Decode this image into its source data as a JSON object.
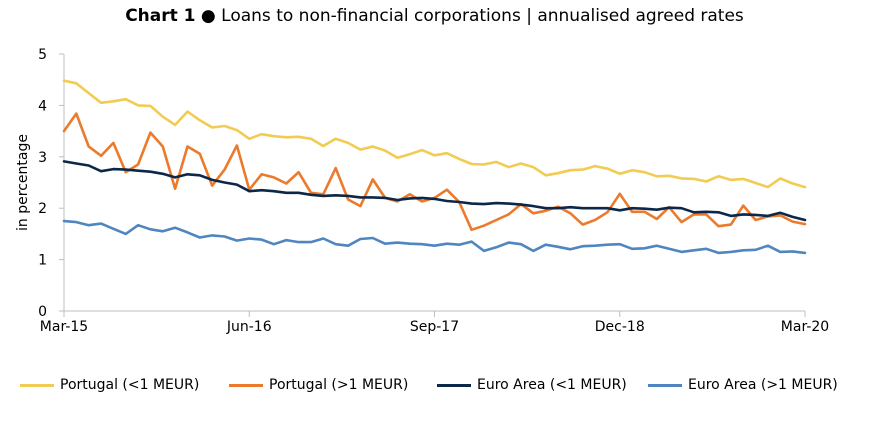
{
  "title": {
    "prefix": "Chart 1",
    "bullet": "●",
    "text": "Loans to non-financial corporations | annualised agreed rates"
  },
  "chart_data": {
    "type": "line",
    "ylabel": "in percentage",
    "ylim": [
      0,
      5
    ],
    "yticks": [
      0,
      1,
      2,
      3,
      4,
      5
    ],
    "x_range": [
      "2015-03",
      "2020-03"
    ],
    "xticks": [
      {
        "label": "Mar-15",
        "month": "2015-03"
      },
      {
        "label": "Jun-16",
        "month": "2016-06"
      },
      {
        "label": "Sep-17",
        "month": "2017-09"
      },
      {
        "label": "Dec-18",
        "month": "2018-12"
      },
      {
        "label": "Mar-20",
        "month": "2020-03"
      }
    ],
    "grid": false,
    "legend_position": "bottom",
    "series": [
      {
        "name": "Portugal (<1 MEUR)",
        "color": "#f2cb52",
        "values": [
          4.48,
          4.43,
          4.24,
          4.05,
          4.08,
          4.12,
          4.0,
          3.99,
          3.78,
          3.62,
          3.88,
          3.71,
          3.57,
          3.6,
          3.52,
          3.35,
          3.44,
          3.4,
          3.38,
          3.39,
          3.35,
          3.21,
          3.35,
          3.27,
          3.14,
          3.2,
          3.12,
          2.98,
          3.05,
          3.13,
          3.03,
          3.07,
          2.96,
          2.86,
          2.85,
          2.9,
          2.8,
          2.87,
          2.8,
          2.64,
          2.68,
          2.74,
          2.75,
          2.82,
          2.77,
          2.67,
          2.74,
          2.7,
          2.62,
          2.63,
          2.58,
          2.57,
          2.52,
          2.62,
          2.55,
          2.57,
          2.49,
          2.41,
          2.58,
          2.48,
          2.41
        ]
      },
      {
        "name": "Portugal (>1 MEUR)",
        "color": "#ec7a2c",
        "values": [
          3.5,
          3.84,
          3.2,
          3.02,
          3.27,
          2.7,
          2.85,
          3.47,
          3.2,
          2.38,
          3.2,
          3.06,
          2.44,
          2.75,
          3.22,
          2.36,
          2.66,
          2.6,
          2.48,
          2.7,
          2.3,
          2.27,
          2.78,
          2.17,
          2.04,
          2.56,
          2.2,
          2.13,
          2.27,
          2.13,
          2.2,
          2.36,
          2.12,
          1.58,
          1.66,
          1.77,
          1.88,
          2.08,
          1.9,
          1.95,
          2.03,
          1.9,
          1.68,
          1.77,
          1.92,
          2.28,
          1.93,
          1.93,
          1.79,
          2.02,
          1.73,
          1.88,
          1.88,
          1.65,
          1.68,
          2.05,
          1.77,
          1.84,
          1.86,
          1.74,
          1.69
        ]
      },
      {
        "name": "Euro Area (<1 MEUR)",
        "color": "#0c2748",
        "values": [
          2.91,
          2.87,
          2.83,
          2.72,
          2.76,
          2.75,
          2.73,
          2.71,
          2.67,
          2.6,
          2.66,
          2.64,
          2.55,
          2.5,
          2.46,
          2.33,
          2.35,
          2.33,
          2.3,
          2.3,
          2.26,
          2.24,
          2.25,
          2.24,
          2.21,
          2.21,
          2.2,
          2.16,
          2.19,
          2.2,
          2.18,
          2.14,
          2.12,
          2.09,
          2.08,
          2.1,
          2.09,
          2.07,
          2.04,
          2.0,
          2.0,
          2.02,
          2.0,
          2.0,
          2.0,
          1.96,
          2.0,
          1.99,
          1.97,
          2.01,
          2.0,
          1.92,
          1.93,
          1.92,
          1.85,
          1.88,
          1.87,
          1.85,
          1.91,
          1.83,
          1.77
        ]
      },
      {
        "name": "Euro Area (>1 MEUR)",
        "color": "#4f86c0",
        "values": [
          1.75,
          1.73,
          1.67,
          1.7,
          1.6,
          1.5,
          1.67,
          1.59,
          1.55,
          1.62,
          1.53,
          1.43,
          1.47,
          1.45,
          1.37,
          1.41,
          1.39,
          1.3,
          1.38,
          1.34,
          1.34,
          1.41,
          1.3,
          1.27,
          1.4,
          1.42,
          1.31,
          1.33,
          1.31,
          1.3,
          1.27,
          1.31,
          1.29,
          1.35,
          1.17,
          1.24,
          1.33,
          1.3,
          1.17,
          1.29,
          1.25,
          1.2,
          1.26,
          1.27,
          1.29,
          1.3,
          1.21,
          1.22,
          1.27,
          1.21,
          1.15,
          1.18,
          1.21,
          1.13,
          1.15,
          1.18,
          1.19,
          1.27,
          1.15,
          1.16,
          1.13
        ]
      }
    ]
  }
}
